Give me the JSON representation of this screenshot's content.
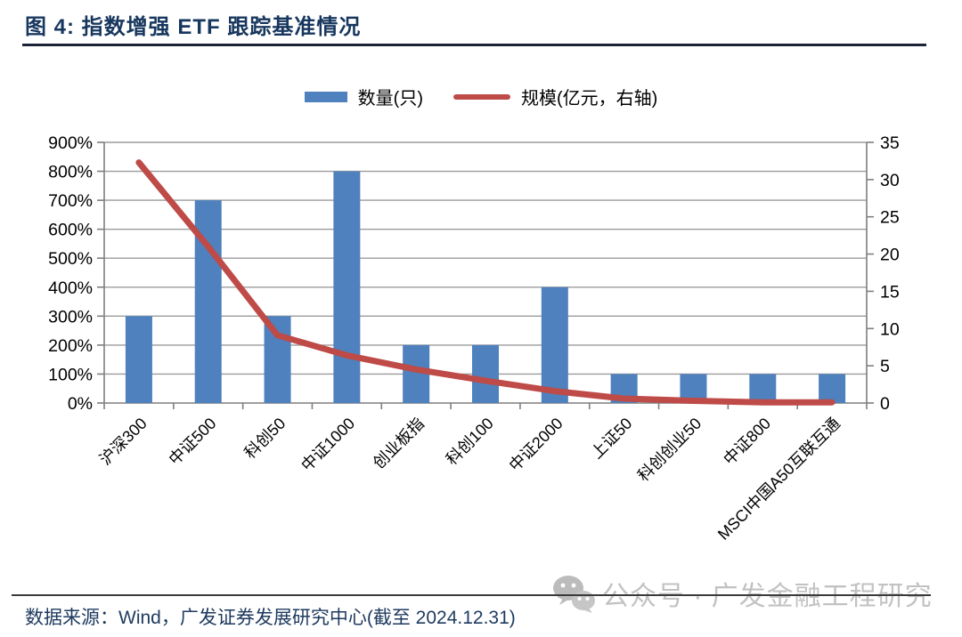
{
  "title": "图 4:  指数增强 ETF 跟踪基准情况",
  "legend": [
    {
      "label": "数量(只)",
      "swatch": "bar",
      "color": "#4E81BD"
    },
    {
      "label": "规模(亿元，右轴)",
      "swatch": "line",
      "color": "#BE4B48"
    }
  ],
  "chart_data": {
    "type": "combo",
    "title": "指数增强 ETF 跟踪基准情况",
    "categories": [
      "沪深300",
      "中证500",
      "科创50",
      "中证1000",
      "创业板指",
      "科创100",
      "中证2000",
      "上证50",
      "科创创业50",
      "中证800",
      "MSCI中国A50互联互通"
    ],
    "series": [
      {
        "name": "数量(只)",
        "type": "bar",
        "axis": "left",
        "color": "#4E81BD",
        "values": [
          300,
          700,
          300,
          800,
          200,
          200,
          400,
          100,
          100,
          100,
          100
        ]
      },
      {
        "name": "规模(亿元，右轴)",
        "type": "line",
        "axis": "right",
        "color": "#BE4B48",
        "values": [
          32.3,
          21.0,
          9.1,
          6.4,
          4.5,
          3.0,
          1.6,
          0.6,
          0.3,
          0.1,
          0.1
        ]
      }
    ],
    "left_axis": {
      "min": 0,
      "max": 900,
      "step": 100,
      "tick_labels": [
        "0%",
        "100%",
        "200%",
        "300%",
        "400%",
        "500%",
        "600%",
        "700%",
        "800%",
        "900%"
      ]
    },
    "right_axis": {
      "min": 0,
      "max": 35,
      "step": 5,
      "tick_labels": [
        "0",
        "5",
        "10",
        "15",
        "20",
        "25",
        "30",
        "35"
      ]
    },
    "grid": true,
    "legend_position": "top"
  },
  "styles": {
    "grid_color": "#9B9B9B",
    "axis_color": "#7F7F7F",
    "tick_text_color": "#000000",
    "title_color": "#17375E",
    "watermark_color": "#c2c2c2"
  },
  "footer": {
    "source": "数据来源：Wind，广发证券发展研究中心(截至 2024.12.31)"
  },
  "watermark": {
    "icon": "wechat-icon",
    "text": "公众号 · 广发金融工程研究"
  }
}
